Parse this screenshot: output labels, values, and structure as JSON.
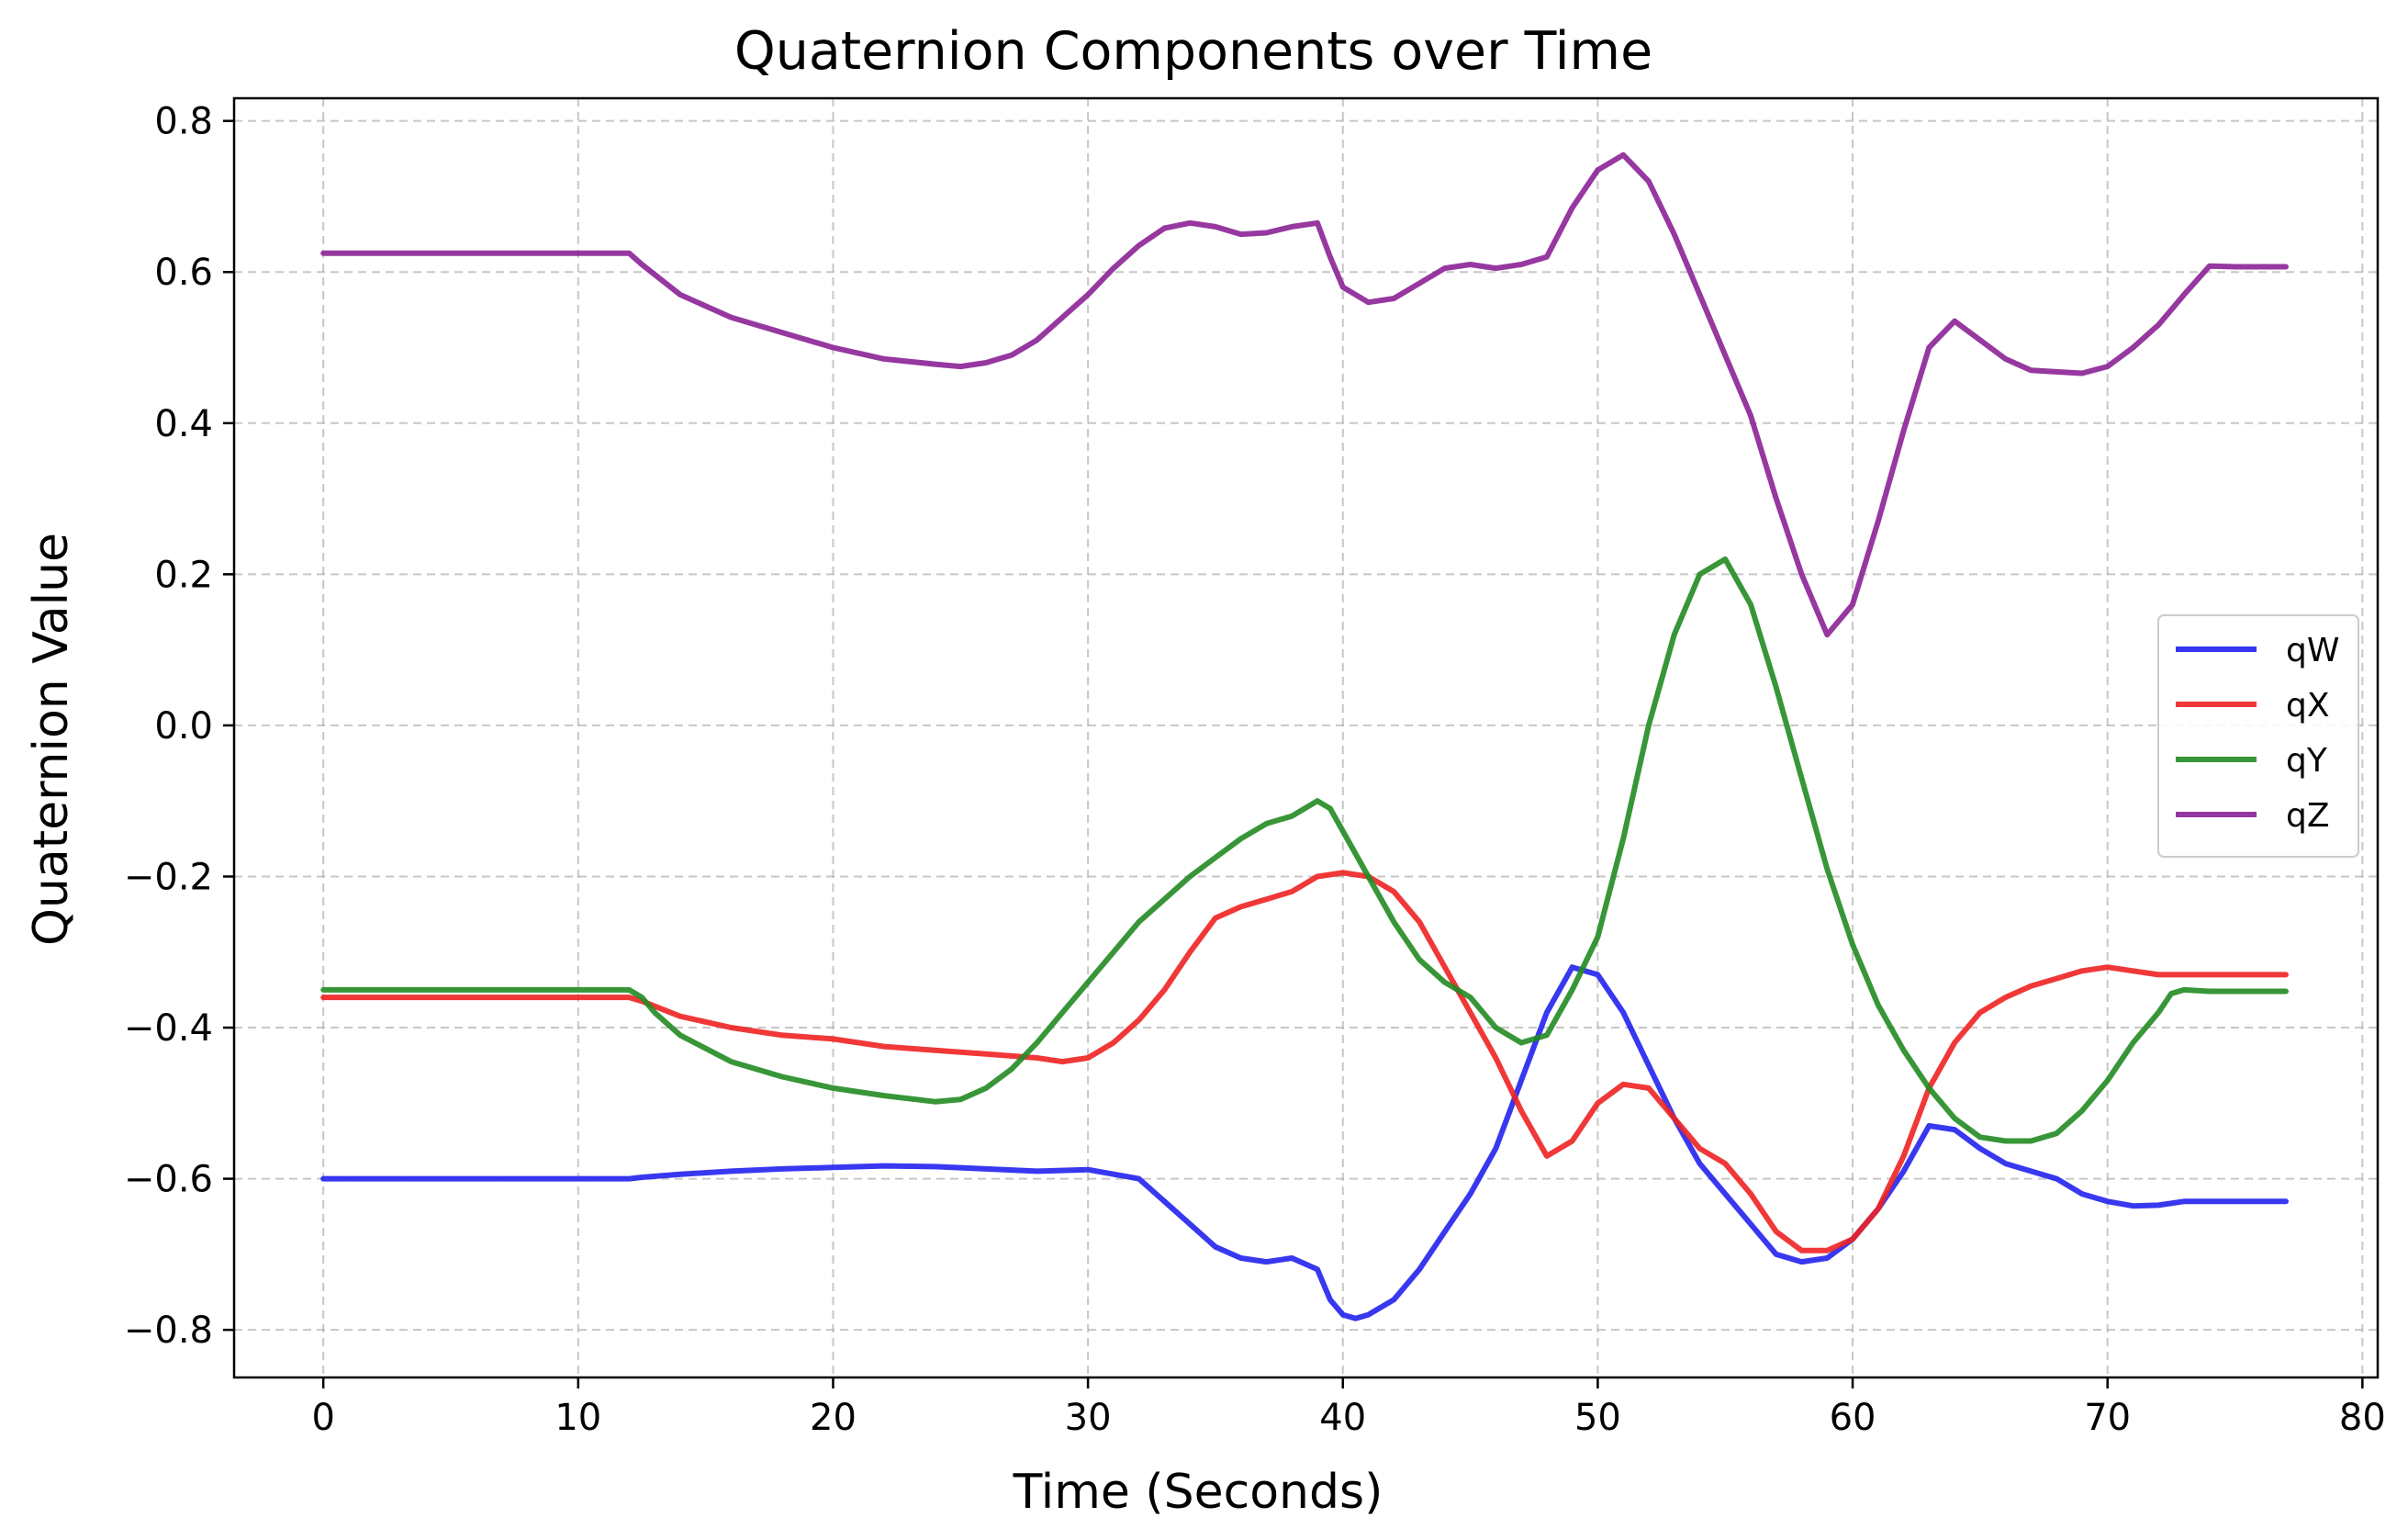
{
  "chart_data": {
    "type": "line",
    "title": "Quaternion Components over Time",
    "xlabel": "Time (Seconds)",
    "ylabel": "Quaternion Value",
    "xlim": [
      -3.5,
      80.6
    ],
    "ylim": [
      -0.863,
      0.83
    ],
    "xticks": [
      0,
      10,
      20,
      30,
      40,
      50,
      60,
      70,
      80
    ],
    "xtick_labels": [
      "0",
      "10",
      "20",
      "30",
      "40",
      "50",
      "60",
      "70",
      "80"
    ],
    "yticks": [
      0.8,
      0.6,
      0.4,
      0.2,
      0.0,
      -0.2,
      -0.4,
      -0.6,
      -0.8
    ],
    "ytick_labels": [
      "0.8",
      "0.6",
      "0.4",
      "0.2",
      "0.0",
      "−0.2",
      "−0.4",
      "−0.6",
      "−0.8"
    ],
    "grid": true,
    "legend_position": "center-right",
    "series": [
      {
        "name": "qW",
        "color": "#2222ee",
        "x": [
          0,
          12,
          12.5,
          14,
          16,
          18,
          20,
          22,
          24,
          26,
          28,
          30,
          32,
          33,
          34,
          35,
          36,
          37,
          38,
          39,
          39.5,
          40,
          40.5,
          41,
          42,
          43,
          44,
          45,
          46,
          47,
          48,
          49,
          50,
          51,
          52,
          53,
          54,
          55,
          56,
          57,
          58,
          59,
          60,
          61,
          62,
          63,
          64,
          65,
          66,
          67,
          68,
          69,
          70,
          71,
          72,
          73,
          74,
          75,
          76,
          77
        ],
        "y": [
          -0.6,
          -0.6,
          -0.598,
          -0.594,
          -0.59,
          -0.587,
          -0.585,
          -0.583,
          -0.584,
          -0.587,
          -0.59,
          -0.588,
          -0.6,
          -0.63,
          -0.66,
          -0.69,
          -0.705,
          -0.71,
          -0.705,
          -0.72,
          -0.76,
          -0.78,
          -0.785,
          -0.78,
          -0.76,
          -0.72,
          -0.67,
          -0.62,
          -0.56,
          -0.47,
          -0.38,
          -0.32,
          -0.33,
          -0.38,
          -0.45,
          -0.52,
          -0.58,
          -0.62,
          -0.66,
          -0.7,
          -0.71,
          -0.705,
          -0.68,
          -0.64,
          -0.59,
          -0.53,
          -0.535,
          -0.56,
          -0.58,
          -0.59,
          -0.6,
          -0.62,
          -0.63,
          -0.636,
          -0.635,
          -0.63,
          -0.63,
          -0.63,
          -0.63,
          -0.63
        ]
      },
      {
        "name": "qX",
        "color": "#ee2222",
        "x": [
          0,
          12,
          12.5,
          14,
          16,
          18,
          20,
          22,
          24,
          26,
          28,
          29,
          30,
          31,
          32,
          33,
          34,
          35,
          36,
          37,
          38,
          39,
          40,
          41,
          42,
          43,
          44,
          45,
          46,
          47,
          48,
          49,
          50,
          51,
          52,
          53,
          54,
          55,
          56,
          57,
          58,
          59,
          60,
          61,
          62,
          63,
          64,
          65,
          66,
          67,
          68,
          69,
          70,
          71,
          72,
          73,
          74,
          75,
          76,
          77
        ],
        "y": [
          -0.36,
          -0.36,
          -0.365,
          -0.385,
          -0.4,
          -0.41,
          -0.415,
          -0.425,
          -0.43,
          -0.435,
          -0.44,
          -0.445,
          -0.44,
          -0.42,
          -0.39,
          -0.35,
          -0.3,
          -0.255,
          -0.24,
          -0.23,
          -0.22,
          -0.2,
          -0.195,
          -0.2,
          -0.22,
          -0.26,
          -0.32,
          -0.38,
          -0.44,
          -0.51,
          -0.57,
          -0.55,
          -0.5,
          -0.475,
          -0.48,
          -0.52,
          -0.56,
          -0.58,
          -0.62,
          -0.67,
          -0.695,
          -0.695,
          -0.68,
          -0.64,
          -0.57,
          -0.48,
          -0.42,
          -0.38,
          -0.36,
          -0.345,
          -0.335,
          -0.325,
          -0.32,
          -0.325,
          -0.33,
          -0.33,
          -0.33,
          -0.33,
          -0.33,
          -0.33
        ]
      },
      {
        "name": "qY",
        "color": "#228b22",
        "x": [
          0,
          12,
          12.5,
          13,
          14,
          16,
          18,
          20,
          22,
          24,
          25,
          26,
          27,
          28,
          29,
          30,
          31,
          32,
          33,
          34,
          35,
          36,
          37,
          38,
          39,
          39.5,
          40,
          41,
          42,
          43,
          44,
          45,
          46,
          47,
          48,
          49,
          50,
          51,
          52,
          53,
          54,
          55,
          56,
          57,
          58,
          59,
          60,
          61,
          62,
          63,
          64,
          65,
          66,
          67,
          68,
          69,
          70,
          71,
          72,
          72.5,
          73,
          74,
          75,
          76,
          77
        ],
        "y": [
          -0.35,
          -0.35,
          -0.36,
          -0.38,
          -0.41,
          -0.445,
          -0.465,
          -0.48,
          -0.49,
          -0.498,
          -0.495,
          -0.48,
          -0.455,
          -0.42,
          -0.38,
          -0.34,
          -0.3,
          -0.26,
          -0.23,
          -0.2,
          -0.175,
          -0.15,
          -0.13,
          -0.12,
          -0.1,
          -0.11,
          -0.14,
          -0.2,
          -0.26,
          -0.31,
          -0.34,
          -0.36,
          -0.4,
          -0.42,
          -0.41,
          -0.35,
          -0.28,
          -0.15,
          0.0,
          0.12,
          0.2,
          0.22,
          0.16,
          0.05,
          -0.07,
          -0.19,
          -0.29,
          -0.37,
          -0.43,
          -0.48,
          -0.52,
          -0.545,
          -0.55,
          -0.55,
          -0.54,
          -0.51,
          -0.47,
          -0.42,
          -0.38,
          -0.355,
          -0.35,
          -0.352,
          -0.352,
          -0.352,
          -0.352
        ]
      },
      {
        "name": "qZ",
        "color": "#8b2296",
        "x": [
          0,
          12,
          12.5,
          14,
          16,
          18,
          20,
          22,
          24,
          25,
          26,
          27,
          28,
          29,
          30,
          31,
          32,
          33,
          34,
          35,
          36,
          37,
          38,
          39,
          39.5,
          40,
          41,
          42,
          43,
          44,
          45,
          46,
          47,
          48,
          49,
          50,
          51,
          52,
          53,
          54,
          55,
          56,
          57,
          58,
          59,
          60,
          61,
          62,
          63,
          64,
          65,
          66,
          67,
          68,
          69,
          70,
          71,
          72,
          73,
          74,
          75,
          76,
          77
        ],
        "y": [
          0.625,
          0.625,
          0.61,
          0.57,
          0.54,
          0.52,
          0.5,
          0.485,
          0.478,
          0.475,
          0.48,
          0.49,
          0.51,
          0.54,
          0.57,
          0.605,
          0.635,
          0.658,
          0.665,
          0.66,
          0.65,
          0.652,
          0.66,
          0.665,
          0.62,
          0.58,
          0.56,
          0.565,
          0.585,
          0.605,
          0.61,
          0.605,
          0.61,
          0.62,
          0.685,
          0.735,
          0.755,
          0.72,
          0.65,
          0.57,
          0.49,
          0.41,
          0.3,
          0.2,
          0.12,
          0.16,
          0.27,
          0.39,
          0.5,
          0.535,
          0.51,
          0.485,
          0.47,
          0.468,
          0.466,
          0.475,
          0.5,
          0.53,
          0.57,
          0.608,
          0.607,
          0.607,
          0.607
        ]
      }
    ]
  }
}
